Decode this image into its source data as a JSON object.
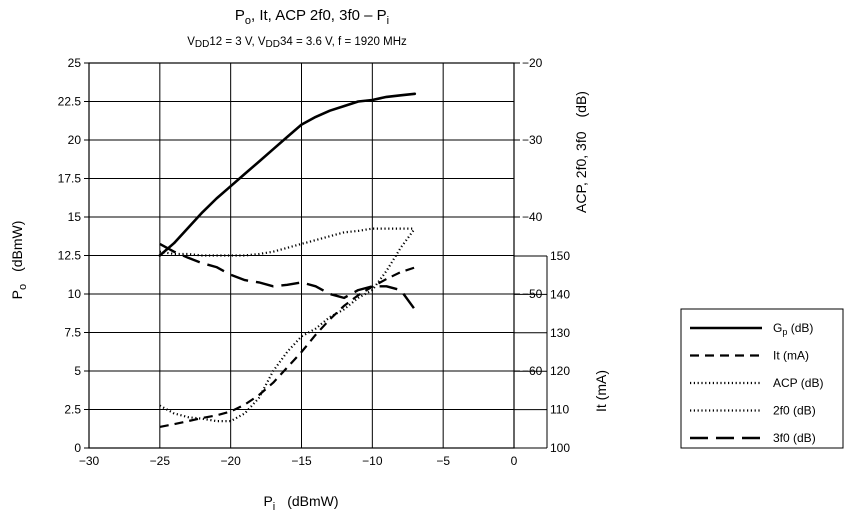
{
  "chart_data": {
    "type": "line",
    "title": "P₀, It, ACP 2f0, 3f0 – Pᵢ",
    "title_parts": {
      "p": "P",
      "o": "o",
      "rest": ", It, ACP 2f0, 3f0 – P",
      "i": "i"
    },
    "subtitle": "VDD12 = 3 V, VDD34 = 3.6 V, f = 1920 MHz",
    "subtitle_parts": {
      "v1": "V",
      "s1": "DD",
      "r1": "12 = 3 V, V",
      "s2": "DD",
      "r2": "34 = 3.6 V, f = 1920 MHz"
    },
    "xlabel": {
      "p": "P",
      "sub": "i",
      "unit": "(dBmW)"
    },
    "ylabel_left": {
      "p": "P",
      "sub": "o",
      "unit": "(dBmW)"
    },
    "ylabel_right_top": {
      "text": "ACP, 2f0, 3f0",
      "unit": "(dB)"
    },
    "ylabel_right_bottom": "It (mA)",
    "xlim": [
      -30,
      0
    ],
    "ylim_left": [
      0,
      25
    ],
    "ylim_right_top": [
      -70,
      -20
    ],
    "ylim_right_bottom": [
      100,
      150
    ],
    "x_ticks": [
      "−30",
      "−25",
      "−20",
      "−15",
      "−10",
      "−5",
      "0"
    ],
    "y_left_ticks": [
      "0",
      "2.5",
      "5",
      "7.5",
      "10",
      "12.5",
      "15",
      "17.5",
      "20",
      "22.5",
      "25"
    ],
    "y_right_top_ticks": [
      "−60",
      "−50",
      "−40",
      "−30",
      "−20"
    ],
    "y_right_bottom_ticks": [
      "100",
      "110",
      "120",
      "130",
      "140",
      "150"
    ],
    "grid": true,
    "legend_position": "right",
    "series": [
      {
        "name": "Gp (dB)",
        "name_parts": {
          "main": "G",
          "sub": "p",
          "rest": " (dB)"
        },
        "axis": "left",
        "style": "solid",
        "x": [
          -25,
          -24,
          -23,
          -22,
          -21,
          -20,
          -19,
          -18,
          -17,
          -16,
          -15,
          -14,
          -13,
          -12,
          -11,
          -10,
          -9,
          -8,
          -7
        ],
        "y": [
          12.5,
          13.3,
          14.3,
          15.3,
          16.2,
          17.0,
          17.8,
          18.6,
          19.4,
          20.2,
          21.0,
          21.5,
          21.9,
          22.2,
          22.5,
          22.6,
          22.8,
          22.9,
          23.0
        ]
      },
      {
        "name": "It (mA)",
        "axis": "right_bottom",
        "style": "dashed",
        "x": [
          -25,
          -24,
          -23,
          -22,
          -21,
          -20,
          -19,
          -18,
          -17,
          -16,
          -15,
          -14,
          -13,
          -12,
          -11,
          -10,
          -9,
          -8,
          -7
        ],
        "y": [
          105.5,
          106.2,
          107.0,
          107.8,
          108.5,
          109.5,
          111.3,
          113.8,
          117.0,
          121.0,
          125.0,
          129.5,
          133.5,
          137.0,
          139.8,
          142.0,
          144.0,
          145.8,
          147.0
        ]
      },
      {
        "name": "ACP (dB)",
        "axis": "right_top",
        "style": "dotted",
        "x": [
          -25,
          -24,
          -23,
          -22,
          -21,
          -20,
          -19,
          -18,
          -17,
          -16,
          -15,
          -14,
          -13,
          -12,
          -11,
          -10,
          -9,
          -8,
          -7
        ],
        "y": [
          -64.5,
          -65.5,
          -66.0,
          -66.2,
          -66.5,
          -66.5,
          -65.5,
          -63.5,
          -60.0,
          -57.5,
          -55.5,
          -54.5,
          -53.0,
          -52.0,
          -50.5,
          -49.5,
          -47.0,
          -44.0,
          -41.5
        ]
      },
      {
        "name": "2f0 (dB)",
        "axis": "right_top",
        "style": "dotted",
        "x": [
          -25,
          -24,
          -23,
          -22,
          -21,
          -20,
          -19,
          -18,
          -17,
          -16,
          -15,
          -14,
          -13,
          -12,
          -11,
          -10,
          -9,
          -8,
          -7
        ],
        "y": [
          -44.5,
          -44.8,
          -44.8,
          -45.0,
          -45.0,
          -45.0,
          -45.0,
          -44.8,
          -44.5,
          -44.0,
          -43.5,
          -43.0,
          -42.5,
          -42.0,
          -41.8,
          -41.5,
          -41.5,
          -41.5,
          -41.5
        ]
      },
      {
        "name": "3f0 (dB)",
        "axis": "right_top",
        "style": "longdash",
        "x": [
          -25,
          -24,
          -23,
          -22,
          -21,
          -20,
          -19,
          -18,
          -17,
          -16,
          -15,
          -14,
          -13,
          -12,
          -11,
          -10,
          -9,
          -8,
          -7
        ],
        "y": [
          -43.5,
          -44.5,
          -45.3,
          -46.0,
          -46.5,
          -47.5,
          -48.2,
          -48.5,
          -49.0,
          -48.8,
          -48.5,
          -49.0,
          -50.0,
          -50.5,
          -49.5,
          -49.0,
          -49.0,
          -49.5,
          -52.0
        ]
      }
    ]
  }
}
